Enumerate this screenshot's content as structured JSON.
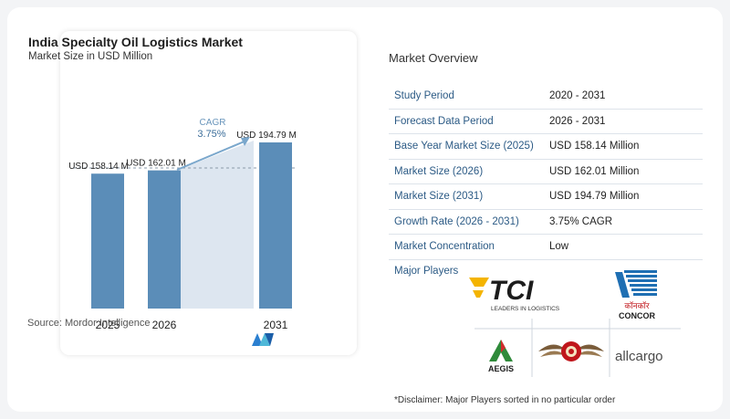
{
  "chart": {
    "title": "India Specialty Oil Logistics Market",
    "subtitle": "Market Size in USD Million",
    "source": "Source:  Mordor Intelligence",
    "cagr_label": "CAGR",
    "cagr_value": "3.75%"
  },
  "chart_data": {
    "type": "bar",
    "title": "India Specialty Oil Logistics Market",
    "subtitle": "Market Size in USD Million",
    "categories": [
      "2025",
      "2026",
      "2031"
    ],
    "values": [
      158.14,
      162.01,
      194.79
    ],
    "data_labels": [
      "USD 158.14 M",
      "USD 162.01 M",
      "USD 194.79 M"
    ],
    "ylim": [
      0,
      200
    ],
    "grid": false,
    "bar_color": "#5b8db8",
    "annotation": {
      "text": "CAGR 3.75%",
      "from": "2026",
      "to": "2031"
    }
  },
  "overview": {
    "title": "Market Overview",
    "rows": [
      {
        "label": "Study Period",
        "value": "2020 - 2031"
      },
      {
        "label": "Forecast Data Period",
        "value": "2026 - 2031"
      },
      {
        "label": "Base Year Market Size (2025)",
        "value": "USD 158.14 Million"
      },
      {
        "label": "Market Size (2026)",
        "value": "USD 162.01 Million"
      },
      {
        "label": "Market Size (2031)",
        "value": "USD 194.79 Million"
      },
      {
        "label": "Growth Rate (2026 - 2031)",
        "value": "3.75% CAGR"
      },
      {
        "label": "Market Concentration",
        "value": "Low"
      }
    ]
  },
  "players": {
    "label": "Major Players",
    "logos": {
      "tci": {
        "name": "TCI",
        "tagline": "LEADERS IN LOGISTICS"
      },
      "concor": {
        "hindi": "कॉनकॉर",
        "name": "CONCOR"
      },
      "aegis": {
        "name": "AEGIS"
      },
      "allcargo": {
        "name": "allcargo"
      }
    }
  },
  "disclaimer": "*Disclaimer: Major Players sorted in no particular order",
  "colors": {
    "bar": "#5b8db8",
    "accent": "#2b5a85",
    "area": "#dde6f0"
  }
}
